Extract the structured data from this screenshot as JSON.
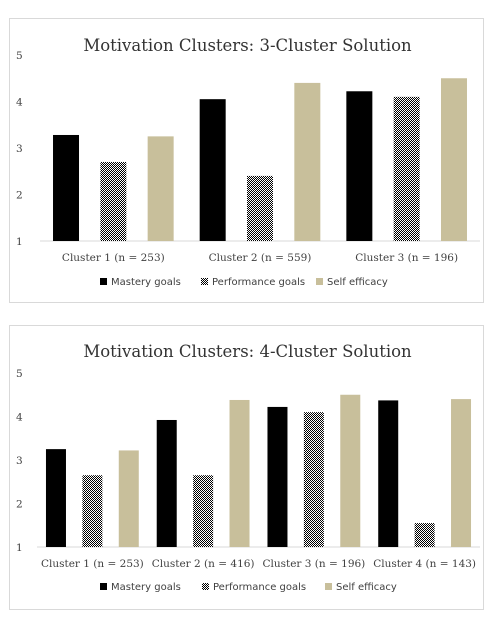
{
  "colors": {
    "mastery": "#000000",
    "performance_pattern": "checkerboard black/white",
    "self_efficacy": "#c8bf9b"
  },
  "chart_data": [
    {
      "type": "bar",
      "title": "Motivation Clusters: 3-Cluster Solution",
      "categories": [
        "Cluster 1 (n = 253)",
        "Cluster 2 (n = 559)",
        "Cluster 3 (n = 196)"
      ],
      "series": [
        {
          "name": "Mastery goals",
          "values": [
            3.28,
            4.05,
            4.22
          ]
        },
        {
          "name": "Performance goals",
          "values": [
            2.7,
            2.4,
            4.1
          ]
        },
        {
          "name": "Self efficacy",
          "values": [
            3.25,
            4.4,
            4.5
          ]
        }
      ],
      "ylim": [
        1,
        5
      ],
      "yticks": [
        "1",
        "2",
        "3",
        "4",
        "5"
      ],
      "legend_position": "bottom",
      "grid": false
    },
    {
      "type": "bar",
      "title": "Motivation Clusters: 4-Cluster Solution",
      "categories": [
        "Cluster 1 (n = 253)",
        "Cluster 2 (n = 416)",
        "Cluster 3 (n = 196)",
        "Cluster 4 (n = 143)"
      ],
      "series": [
        {
          "name": "Mastery goals",
          "values": [
            3.25,
            3.92,
            4.22,
            4.37
          ]
        },
        {
          "name": "Performance goals",
          "values": [
            2.65,
            2.65,
            4.1,
            1.55
          ]
        },
        {
          "name": "Self efficacy",
          "values": [
            3.22,
            4.38,
            4.5,
            4.4
          ]
        }
      ],
      "ylim": [
        1,
        5
      ],
      "yticks": [
        "1",
        "2",
        "3",
        "4",
        "5"
      ],
      "legend_position": "bottom",
      "grid": false
    }
  ]
}
